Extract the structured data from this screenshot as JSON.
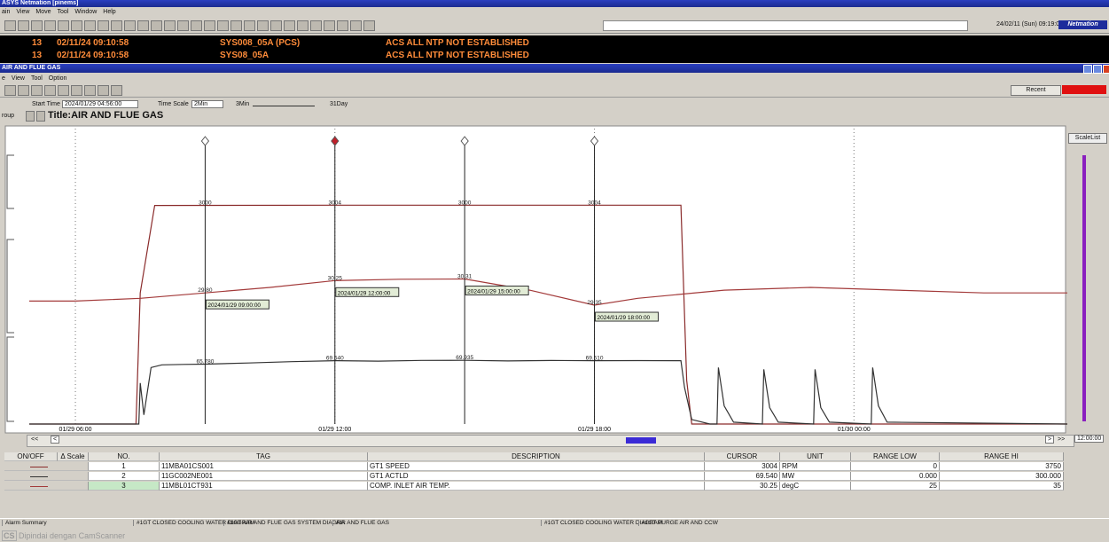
{
  "app": {
    "title": "ASYS Netmation [pinems]",
    "menu": [
      "ain",
      "View",
      "Move",
      "Tool",
      "Window",
      "Help"
    ],
    "clock": "24/02/11 (Sun) 09:19:05",
    "brand": "Netmation"
  },
  "alarms": [
    {
      "count": "13",
      "time": "02/11/24 09:10:58",
      "station": "SYS008_05A (PCS)",
      "message": "ACS ALL NTP NOT ESTABLISHED"
    },
    {
      "count": "13",
      "time": "02/11/24 09:10:58",
      "station": "SYS08_05A",
      "message": "ACS ALL NTP NOT ESTABLISHED"
    }
  ],
  "window": {
    "title": "AIR AND FLUE GAS",
    "menu": [
      "e",
      "View",
      "Tool",
      "Option"
    ],
    "recent": "Recent",
    "start_time_label": "Start Time",
    "start_time": "2024/01/29 04:56:00",
    "time_scale_label": "Time Scale",
    "time_scale": "2Min",
    "scale_min": "3Min",
    "scale_max": "31Day",
    "group_label": "roup",
    "trend_title": "Title:AIR AND FLUE GAS",
    "scale_list": "ScaleList",
    "end_time": "12:00:00"
  },
  "trend": {
    "xlim": [
      "01/29 04:56",
      "01/30 04:56"
    ],
    "xticks": [
      "01/29 06:00",
      "01/29 12:00",
      "01/29 18:00",
      "01/30 00:00"
    ],
    "cursors": [
      "2024/01/29 09:00:00",
      "2024/01/29 12:00:00",
      "2024/01/29 15:00:00",
      "2024/01/29 18:00:00"
    ],
    "selected_cursor": 1,
    "series": [
      {
        "color": "#8a2b2b",
        "ylim": [
          0,
          3750
        ],
        "x": [
          "01/29 04:56",
          "01/29 07:24",
          "01/29 07:30",
          "01/29 07:50",
          "01/29 12:00",
          "01/29 20:00",
          "01/29 20:08",
          "01/29 20:15",
          "01/30 04:56"
        ],
        "values": [
          0,
          0,
          1800,
          3000,
          3004,
          3004,
          600,
          0,
          0
        ],
        "cursor_values": [
          3000,
          3004,
          3000,
          3004
        ]
      },
      {
        "color": "#a33a3a",
        "ylim": [
          25,
          35
        ],
        "x": [
          "01/29 04:56",
          "01/29 06:00",
          "01/29 07:30",
          "01/29 09:00",
          "01/29 10:30",
          "01/29 12:00",
          "01/29 13:30",
          "01/29 15:00",
          "01/29 16:30",
          "01/29 18:00",
          "01/29 19:00",
          "01/29 21:00",
          "01/29 23:00",
          "01/30 01:00",
          "01/30 03:00",
          "01/30 04:56"
        ],
        "values": [
          29.5,
          29.5,
          29.6,
          29.8,
          30.0,
          30.25,
          30.3,
          30.31,
          29.9,
          29.35,
          29.6,
          29.9,
          30.0,
          29.9,
          29.8,
          29.8
        ],
        "cursor_values": [
          29.8,
          30.25,
          30.31,
          29.35
        ],
        "cursor_value_labels": [
          "29.80",
          "30.25",
          "30.31",
          "29.35"
        ]
      },
      {
        "color": "#333333",
        "ylim": [
          0,
          300
        ],
        "x": [
          "01/29 04:56",
          "01/29 07:28",
          "01/29 07:30",
          "01/29 07:35",
          "01/29 07:45",
          "01/29 08:00",
          "01/29 08:30",
          "01/29 09:00",
          "01/29 10:00",
          "01/29 11:00",
          "01/29 12:00",
          "01/29 13:00",
          "01/29 14:00",
          "01/29 15:00",
          "01/29 16:00",
          "01/29 17:00",
          "01/29 18:00",
          "01/29 19:00",
          "01/29 20:00",
          "01/29 20:05",
          "01/29 20:15",
          "01/29 20:40",
          "01/29 20:50",
          "01/29 20:52",
          "01/29 21:00",
          "01/29 21:13",
          "01/29 21:53",
          "01/29 21:55",
          "01/29 22:03",
          "01/29 22:15",
          "01/29 23:04",
          "01/29 23:06",
          "01/29 23:14",
          "01/29 23:26",
          "01/30 00:24",
          "01/30 00:26",
          "01/30 00:34",
          "01/30 00:46",
          "01/30 04:56"
        ],
        "values": [
          0,
          0,
          45,
          10,
          62,
          65,
          65.5,
          65.78,
          67,
          68.5,
          69.54,
          69.1,
          69.8,
          69.935,
          69.3,
          69.7,
          69.51,
          69.6,
          69.5,
          40,
          5,
          0,
          0,
          62,
          20,
          2,
          0,
          60,
          18,
          2,
          0,
          60,
          18,
          2,
          0,
          62,
          20,
          2,
          0
        ],
        "cursor_values": [
          65.78,
          69.54,
          69.935,
          69.51
        ],
        "cursor_value_labels": [
          "65.780",
          "69.540",
          "69.935",
          "69.510"
        ]
      }
    ]
  },
  "table": {
    "headers": [
      "ON/OFF",
      "Δ Scale",
      "NO.",
      "TAG",
      "DESCRIPTION",
      "CURSOR",
      "UNIT",
      "RANGE LOW",
      "RANGE HI"
    ],
    "rows": [
      [
        "1",
        "11MBA01CS001",
        "GT1 SPEED",
        "3004",
        "RPM",
        "0",
        "3750"
      ],
      [
        "2",
        "11GC002NE001",
        "GT1 ACTLD",
        "69.540",
        "MW",
        "0.000",
        "300.000"
      ],
      [
        "3",
        "11MBL01CT931",
        "COMP. INLET AIR TEMP.",
        "30.25",
        "degC",
        "25",
        "35"
      ]
    ]
  },
  "taskbar": [
    "Alarm Summary",
    "#1GT CLOSED COOLING WATER DIAGRAM",
    "#1GT AIR AND FLUE GAS SYSTEM DIAGRA",
    "AIR AND FLUE GAS",
    "#1GT CLOSED COOLING WATER DIAGRAM",
    "#1GT PURGE AIR AND CCW"
  ],
  "footer": {
    "logo": "CS",
    "text": "Dipindai dengan CamScanner"
  }
}
